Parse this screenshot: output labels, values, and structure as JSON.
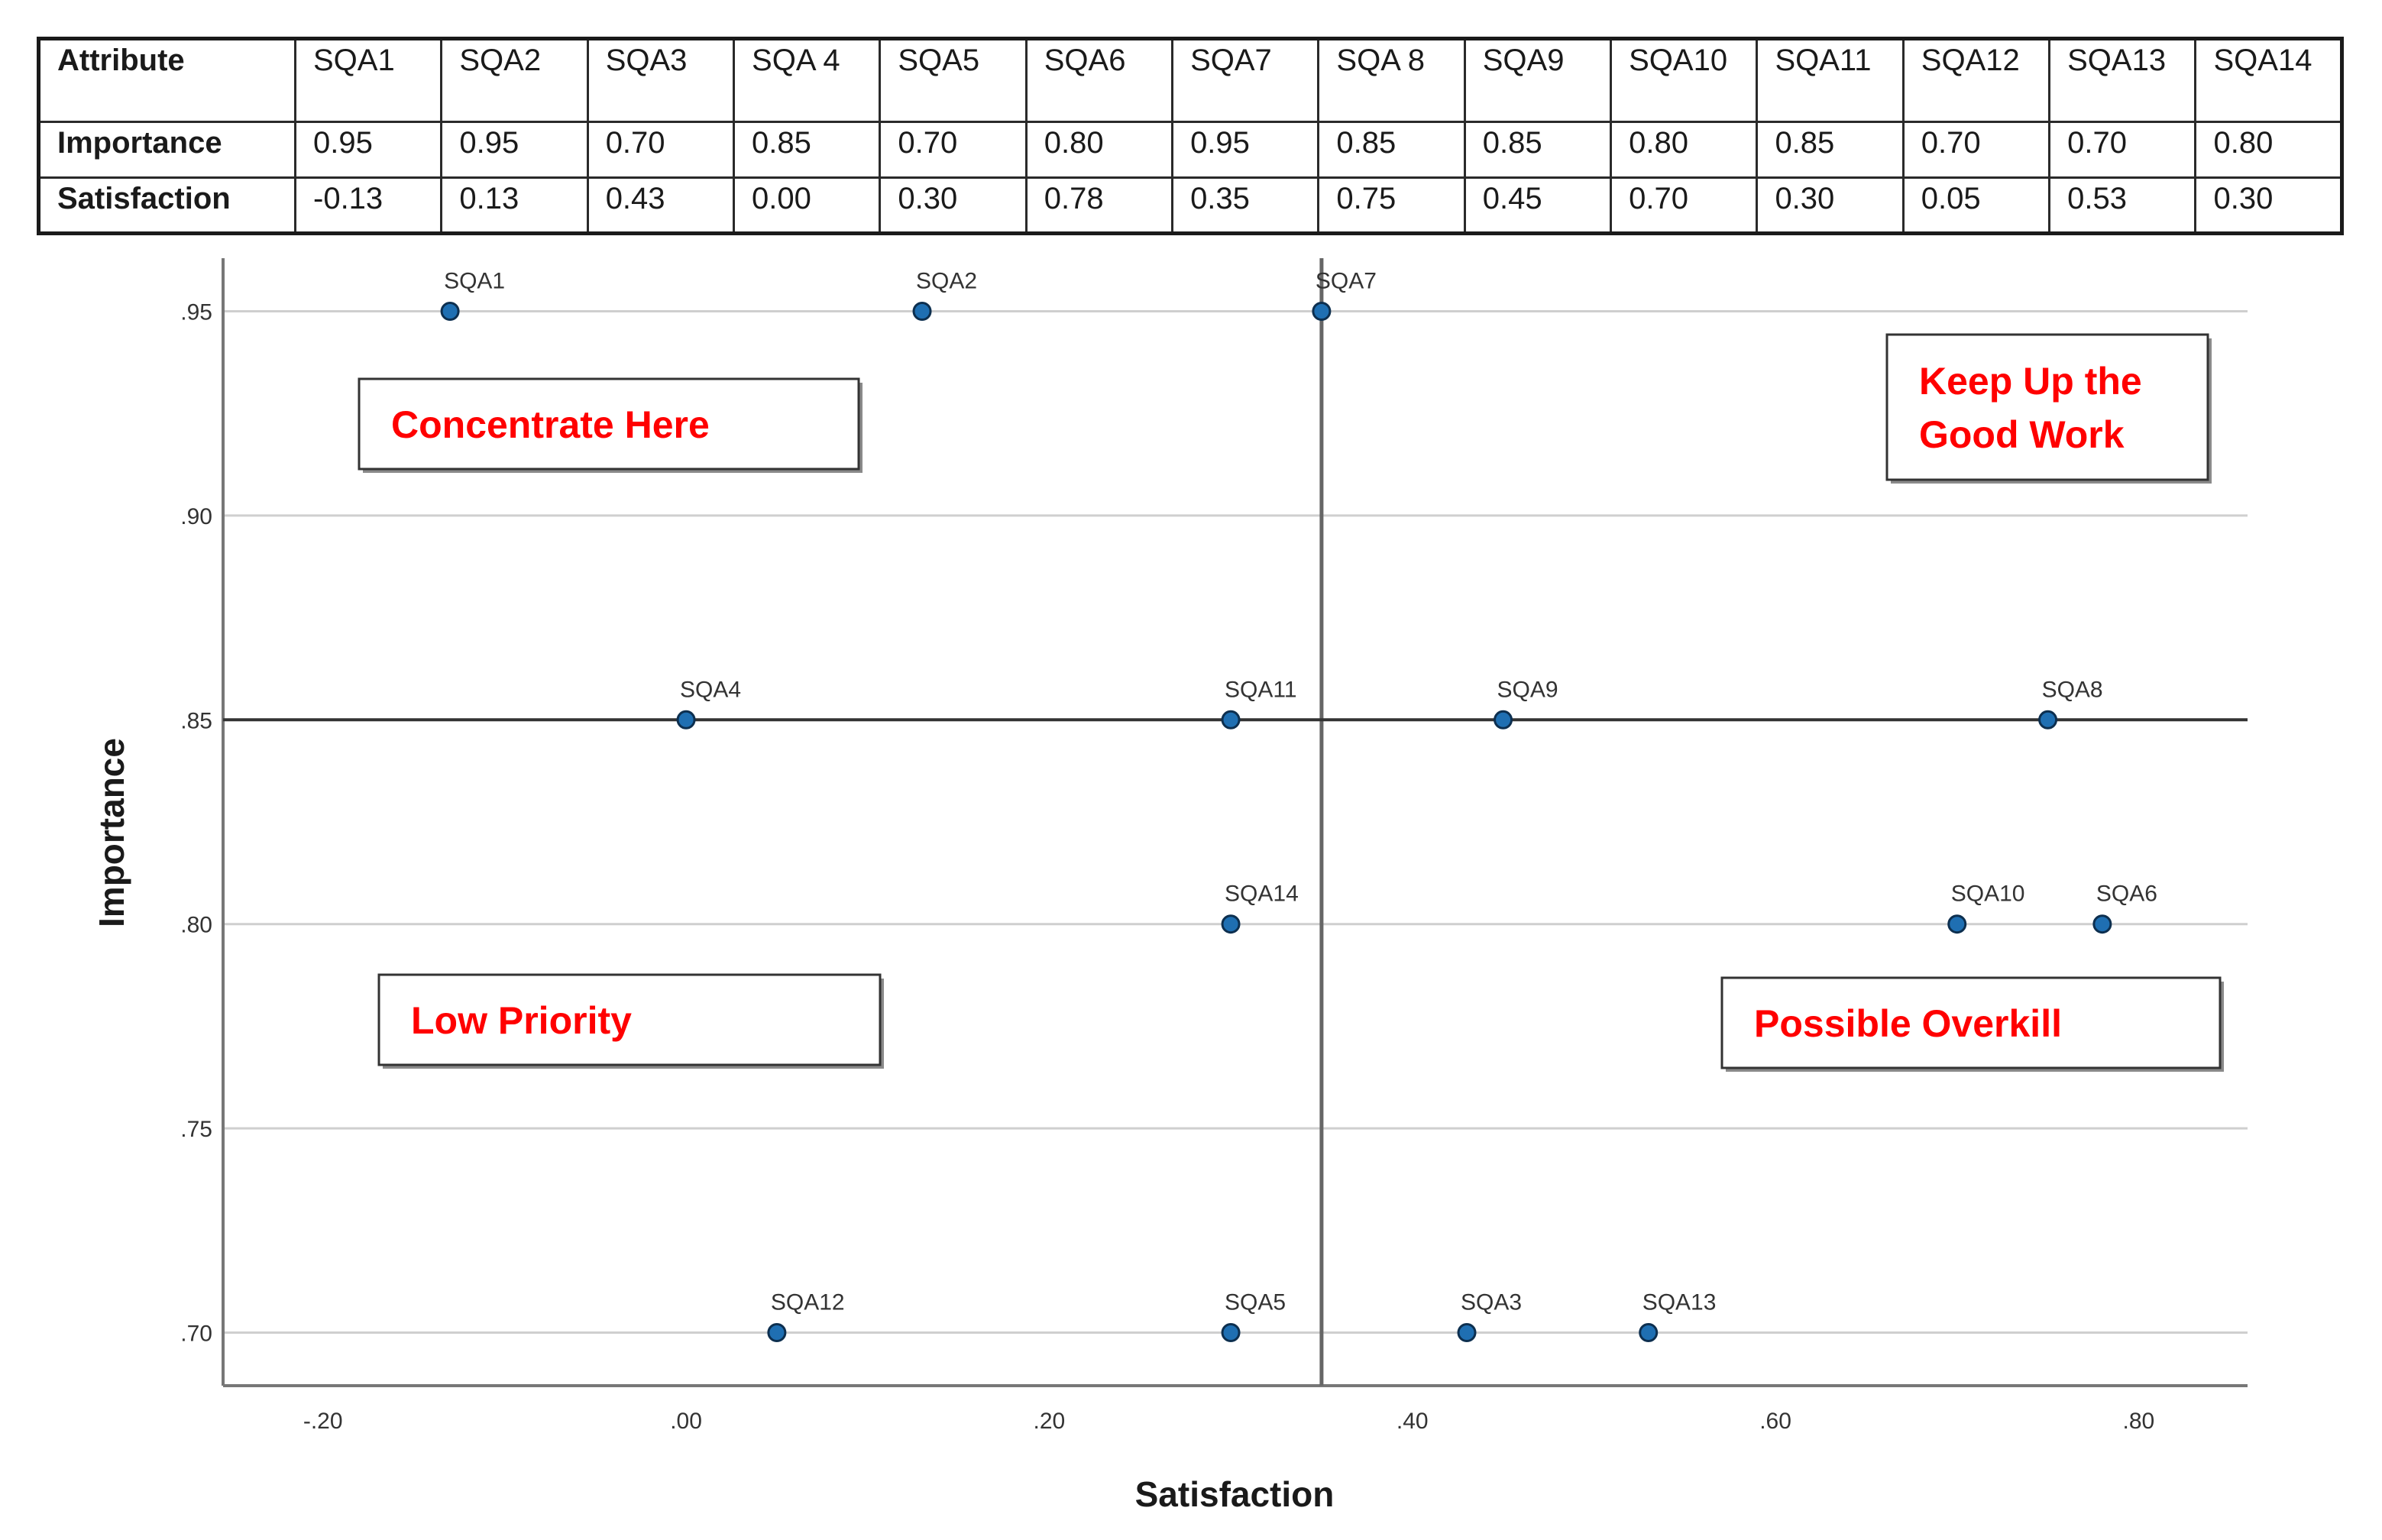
{
  "table": {
    "header_label": "Attribute",
    "columns": [
      "SQA1",
      "SQA2",
      "SQA3",
      "SQA 4",
      "SQA5",
      "SQA6",
      "SQA7",
      "SQA 8",
      "SQA9",
      "SQA10",
      "SQA11",
      "SQA12",
      "SQA13",
      "SQA14"
    ],
    "rows": [
      {
        "label": "Importance",
        "values": [
          "0.95",
          "0.95",
          "0.70",
          "0.85",
          "0.70",
          "0.80",
          "0.95",
          "0.85",
          "0.85",
          "0.80",
          "0.85",
          "0.70",
          "0.70",
          "0.80"
        ]
      },
      {
        "label": "Satisfaction",
        "values": [
          "-0.13",
          "0.13",
          "0.43",
          "0.00",
          "0.30",
          "0.78",
          "0.35",
          "0.75",
          "0.45",
          "0.70",
          "0.30",
          "0.05",
          "0.53",
          "0.30"
        ]
      }
    ]
  },
  "chart_data": {
    "type": "scatter",
    "xlabel": "Satisfaction",
    "ylabel": "Importance",
    "xlim": [
      -0.255,
      0.86
    ],
    "ylim": [
      0.687,
      0.963
    ],
    "xticks": [
      -0.2,
      0.0,
      0.2,
      0.4,
      0.6,
      0.8
    ],
    "xtick_labels": [
      "-.20",
      ".00",
      ".20",
      ".40",
      ".60",
      ".80"
    ],
    "yticks": [
      0.95,
      0.9,
      0.85,
      0.8,
      0.75,
      0.7
    ],
    "ytick_labels": [
      ".95",
      ".90",
      ".85",
      ".80",
      ".75",
      ".70"
    ],
    "grid": "horizontal",
    "reference_lines": {
      "x": 0.35,
      "y": 0.85
    },
    "point_color": "#1f6fb2",
    "quadrant_text_color": "#ff0000",
    "points": [
      {
        "label": "SQA1",
        "x": -0.13,
        "y": 0.95
      },
      {
        "label": "SQA2",
        "x": 0.13,
        "y": 0.95
      },
      {
        "label": "SQA3",
        "x": 0.43,
        "y": 0.7
      },
      {
        "label": "SQA4",
        "x": 0.0,
        "y": 0.85
      },
      {
        "label": "SQA5",
        "x": 0.3,
        "y": 0.7
      },
      {
        "label": "SQA6",
        "x": 0.78,
        "y": 0.8
      },
      {
        "label": "SQA7",
        "x": 0.35,
        "y": 0.95
      },
      {
        "label": "SQA8",
        "x": 0.75,
        "y": 0.85
      },
      {
        "label": "SQA9",
        "x": 0.45,
        "y": 0.85
      },
      {
        "label": "SQA10",
        "x": 0.7,
        "y": 0.8
      },
      {
        "label": "SQA11",
        "x": 0.3,
        "y": 0.85
      },
      {
        "label": "SQA12",
        "x": 0.05,
        "y": 0.7
      },
      {
        "label": "SQA13",
        "x": 0.53,
        "y": 0.7
      },
      {
        "label": "SQA14",
        "x": 0.3,
        "y": 0.8
      }
    ],
    "annotations": [
      {
        "name": "concentrate-here",
        "lines": [
          "Concentrate Here"
        ]
      },
      {
        "name": "keep-up-good-work",
        "lines": [
          "Keep Up the",
          "Good Work"
        ]
      },
      {
        "name": "low-priority",
        "lines": [
          "Low Priority"
        ]
      },
      {
        "name": "possible-overkill",
        "lines": [
          "Possible Overkill"
        ]
      }
    ]
  }
}
